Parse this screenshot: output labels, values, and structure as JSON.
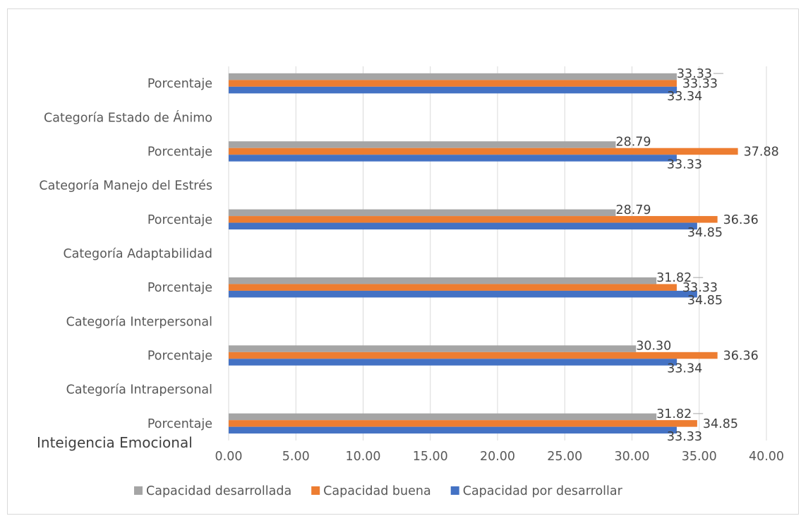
{
  "chart_data": {
    "type": "bar",
    "orientation": "horizontal",
    "categories": [
      "Porcentaje",
      "Categoría Intrapersonal",
      "Porcentaje",
      "Categoría Interpersonal",
      "Porcentaje",
      "Categoría Adaptabilidad",
      "Porcentaje",
      "Categoría Manejo del Estrés",
      "Porcentaje",
      "Categoría Estado de Ánimo",
      "Porcentaje"
    ],
    "series": [
      {
        "name": "Capacidad desarrollada",
        "color": "#a5a5a5",
        "values": [
          31.82,
          null,
          30.3,
          null,
          31.82,
          null,
          28.79,
          null,
          28.79,
          null,
          33.33
        ],
        "labels": [
          "31.82",
          null,
          "30.30",
          null,
          "31.82",
          null,
          "28.79",
          null,
          "28.79",
          null,
          "33.33"
        ]
      },
      {
        "name": "Capacidad buena",
        "color": "#ed7d31",
        "values": [
          34.85,
          null,
          36.36,
          null,
          33.33,
          null,
          36.36,
          null,
          37.88,
          null,
          33.33
        ],
        "labels": [
          "34.85",
          null,
          "36.36",
          null,
          "33.33",
          null,
          "36.36",
          null,
          "37.88",
          null,
          "33.33"
        ]
      },
      {
        "name": "Capacidad por desarrollar",
        "color": "#4472c4",
        "values": [
          33.33,
          null,
          33.34,
          null,
          34.85,
          null,
          34.85,
          null,
          33.33,
          null,
          33.34
        ],
        "labels": [
          "33.33",
          null,
          "33.34",
          null,
          "34.85",
          null,
          "34.85",
          null,
          "33.33",
          null,
          "33.34"
        ]
      }
    ],
    "xlim": [
      0,
      40
    ],
    "xticks": [
      "0.00",
      "5.00",
      "10.00",
      "15.00",
      "20.00",
      "25.00",
      "30.00",
      "35.00",
      "40.00"
    ],
    "title": "",
    "xlabel": "",
    "ylabel": "Inteigencia Emocional",
    "grid": "vertical",
    "legend": "bottom"
  }
}
